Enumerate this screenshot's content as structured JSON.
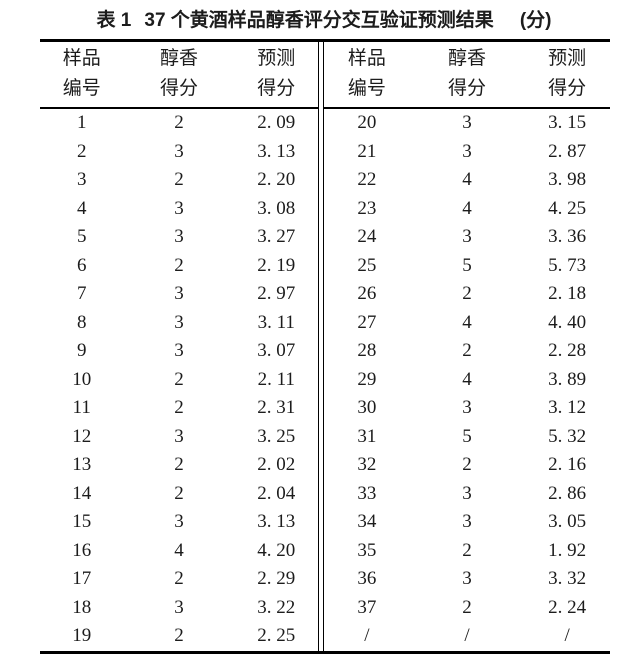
{
  "caption": {
    "label": "表 1",
    "title": "37 个黄酒样品醇香评分交互验证预测结果",
    "unit": "(分)"
  },
  "table": {
    "headers": [
      {
        "line1": "样品",
        "line2": "编号"
      },
      {
        "line1": "醇香",
        "line2": "得分"
      },
      {
        "line1": "预测",
        "line2": "得分"
      }
    ],
    "left_rows": [
      [
        "1",
        "2",
        "2. 09"
      ],
      [
        "2",
        "3",
        "3. 13"
      ],
      [
        "3",
        "2",
        "2. 20"
      ],
      [
        "4",
        "3",
        "3. 08"
      ],
      [
        "5",
        "3",
        "3. 27"
      ],
      [
        "6",
        "2",
        "2. 19"
      ],
      [
        "7",
        "3",
        "2. 97"
      ],
      [
        "8",
        "3",
        "3. 11"
      ],
      [
        "9",
        "3",
        "3. 07"
      ],
      [
        "10",
        "2",
        "2. 11"
      ],
      [
        "11",
        "2",
        "2. 31"
      ],
      [
        "12",
        "3",
        "3. 25"
      ],
      [
        "13",
        "2",
        "2. 02"
      ],
      [
        "14",
        "2",
        "2. 04"
      ],
      [
        "15",
        "3",
        "3. 13"
      ],
      [
        "16",
        "4",
        "4. 20"
      ],
      [
        "17",
        "2",
        "2. 29"
      ],
      [
        "18",
        "3",
        "3. 22"
      ],
      [
        "19",
        "2",
        "2. 25"
      ]
    ],
    "right_rows": [
      [
        "20",
        "3",
        "3. 15"
      ],
      [
        "21",
        "3",
        "2. 87"
      ],
      [
        "22",
        "4",
        "3. 98"
      ],
      [
        "23",
        "4",
        "4. 25"
      ],
      [
        "24",
        "3",
        "3. 36"
      ],
      [
        "25",
        "5",
        "5. 73"
      ],
      [
        "26",
        "2",
        "2. 18"
      ],
      [
        "27",
        "4",
        "4. 40"
      ],
      [
        "28",
        "2",
        "2. 28"
      ],
      [
        "29",
        "4",
        "3. 89"
      ],
      [
        "30",
        "3",
        "3. 12"
      ],
      [
        "31",
        "5",
        "5. 32"
      ],
      [
        "32",
        "2",
        "2. 16"
      ],
      [
        "33",
        "3",
        "2. 86"
      ],
      [
        "34",
        "3",
        "3. 05"
      ],
      [
        "35",
        "2",
        "1. 92"
      ],
      [
        "36",
        "3",
        "3. 32"
      ],
      [
        "37",
        "2",
        "2. 24"
      ],
      [
        "/",
        "/",
        "/"
      ]
    ]
  },
  "colors": {
    "text": "#1c1c1c",
    "rule": "#000000",
    "background": "#ffffff"
  }
}
